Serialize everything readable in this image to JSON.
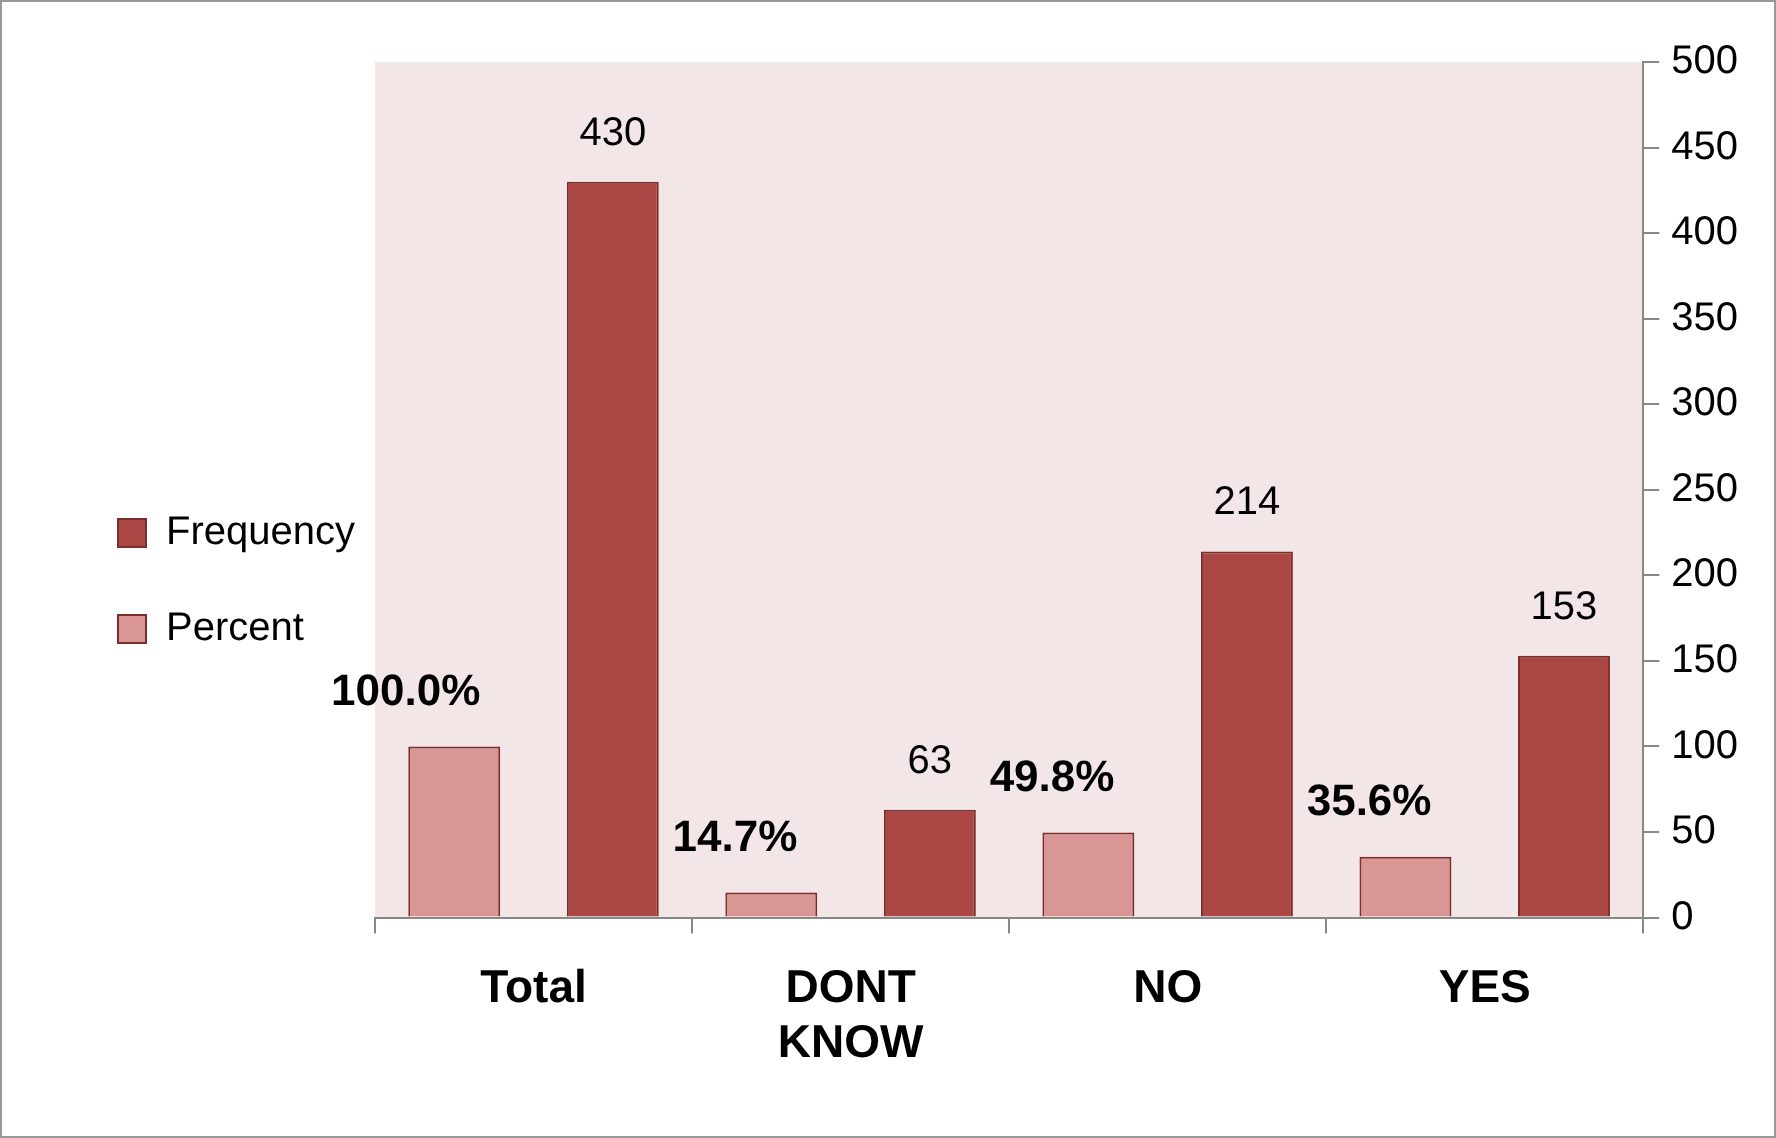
{
  "chart_data": {
    "type": "bar",
    "categories": [
      "Total",
      "DONT KNOW",
      "NO",
      "YES"
    ],
    "series": [
      {
        "name": "Percent",
        "color": "#d99694",
        "values": [
          100,
          14.7,
          49.8,
          35.6
        ],
        "value_labels": [
          "100.0%",
          "14.7%",
          "49.8%",
          "35.6%"
        ]
      },
      {
        "name": "Frequency",
        "color": "#aa4643",
        "values": [
          430,
          63,
          214,
          153
        ],
        "value_labels": [
          "430",
          "63",
          "214",
          "153"
        ]
      }
    ],
    "ylim": [
      0,
      500
    ],
    "yticks": [
      0,
      50,
      100,
      150,
      200,
      250,
      300,
      350,
      400,
      450,
      500
    ],
    "grid": false,
    "legend": "left"
  }
}
